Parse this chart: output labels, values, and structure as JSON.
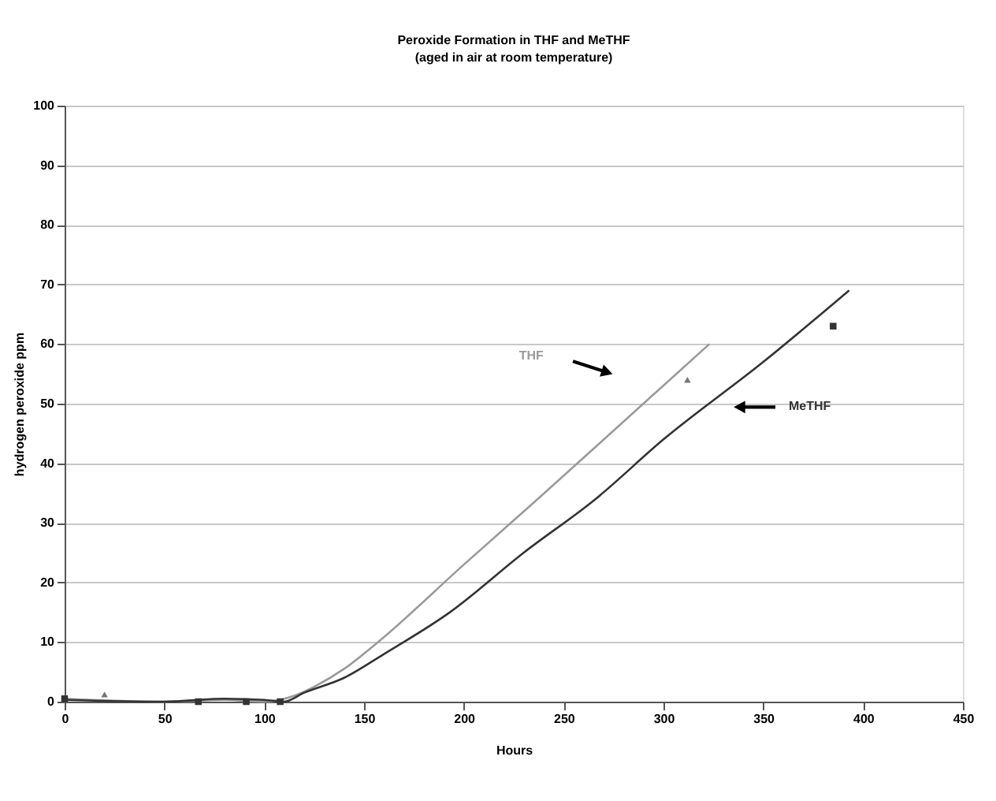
{
  "chart_data": {
    "type": "line",
    "title": "Peroxide Formation in THF and MeTHF",
    "subtitle": "(aged in air at room temperature)",
    "xlabel": "Hours",
    "ylabel": "hydrogen peroxide ppm",
    "xlim": [
      0,
      450
    ],
    "xticks": [
      0,
      50,
      100,
      150,
      200,
      250,
      300,
      350,
      400,
      450
    ],
    "ylim": [
      0,
      100
    ],
    "yticks": [
      0,
      10,
      20,
      30,
      40,
      50,
      60,
      70,
      80,
      90,
      100
    ],
    "grid": "y",
    "series": [
      {
        "name": "THF",
        "color": "#9a9a9a",
        "x": [
          0,
          50,
          80,
          100,
          115,
          125,
          140,
          157,
          200,
          237,
          280,
          323
        ],
        "values": [
          0.5,
          0,
          0.3,
          0,
          1,
          2.5,
          5.5,
          10,
          23,
          34,
          47,
          60
        ]
      },
      {
        "name": "MeTHF",
        "color": "#333333",
        "x": [
          0,
          50,
          80,
          100,
          110,
          120,
          140,
          160,
          193,
          230,
          266,
          300,
          350,
          393
        ],
        "values": [
          0.3,
          0,
          0.5,
          0.3,
          0,
          1.5,
          4,
          8,
          15,
          25,
          34,
          44,
          57,
          69
        ]
      },
      {
        "type": "scatter",
        "marker": "triangle",
        "color": "#777777",
        "x": [
          20,
          312
        ],
        "values": [
          1.2,
          54
        ]
      },
      {
        "type": "scatter",
        "marker": "square",
        "color": "#333333",
        "x": [
          0,
          67,
          91,
          108,
          385
        ],
        "values": [
          0.5,
          0,
          0,
          0,
          63
        ]
      }
    ]
  }
}
